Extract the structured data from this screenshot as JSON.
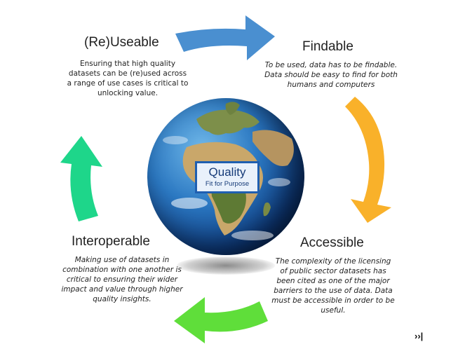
{
  "center": {
    "title": "Quality",
    "subtitle": "Fit for Purpose"
  },
  "nodes": {
    "reuseable": {
      "title": "(Re)Useable",
      "desc_lines": [
        "Ensuring that high quality",
        "datasets can be (re)used across",
        "a range of use cases is critical to",
        "unlocking value."
      ]
    },
    "findable": {
      "title": "Findable",
      "desc_lines": [
        "To be used, data has to be findable.",
        "Data should be easy to find for both",
        "humans and computers"
      ]
    },
    "accessible": {
      "title": "Accessible",
      "desc_lines": [
        "The complexity of the licensing",
        "of public sector datasets has",
        "been cited as one of the major",
        "barriers to the use of data. Data",
        "must be accessible in order to be",
        "useful."
      ]
    },
    "interoperable": {
      "title": "Interoperable",
      "desc_lines": [
        "Making use of datasets in",
        "combination with one another is",
        "critical to ensuring their wider",
        "impact and value through higher",
        "quality insights."
      ]
    }
  },
  "colors": {
    "arrow_top": "#4a8fd0",
    "arrow_right": "#f9b12a",
    "arrow_bottom": "#5fde3a",
    "arrow_left": "#1ed68a",
    "quality_border": "#1f5fb0"
  },
  "cursor_glyph": "››|"
}
